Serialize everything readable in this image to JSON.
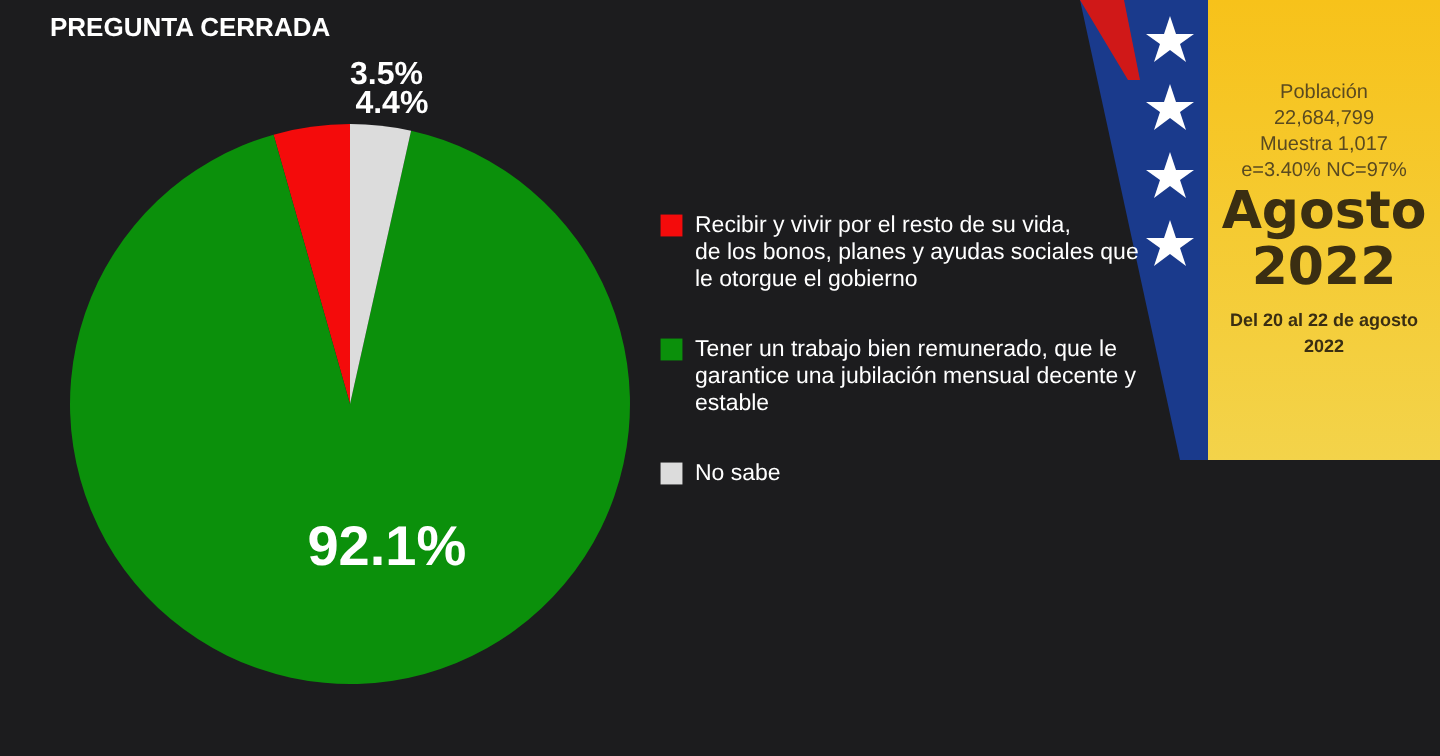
{
  "chart_data": {
    "type": "pie",
    "title": "PREGUNTA CERRADA",
    "categories": [
      "Recibir y vivir por el resto de su vida, de los bonos, planes y ayudas sociales que le otorgue el gobierno",
      "Tener un trabajo bien remunerado, que le garantice una jubilación mensual decente y estable",
      "No sabe"
    ],
    "values": [
      4.4,
      92.1,
      3.5
    ],
    "value_labels": [
      "4.4%",
      "92.1%",
      "3.5%"
    ],
    "colors": [
      "#f40b0b",
      "#0b900b",
      "#dcdcdc"
    ],
    "legend": "right",
    "annotations": [
      "Población",
      "22,684,799",
      "Muestra 1,017",
      "e=3.40%  NC=97%",
      "Agosto",
      "2022",
      "Del 20 al 22 de agosto 2022"
    ]
  }
}
